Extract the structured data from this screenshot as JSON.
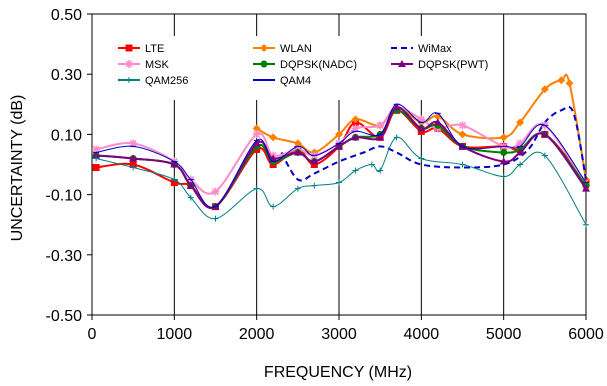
{
  "chart_data": {
    "type": "line",
    "xlabel": "FREQUENCY (MHz)",
    "ylabel": "UNCERTAINTY (dB)",
    "xlim": [
      0,
      6000
    ],
    "ylim": [
      -0.5,
      0.5
    ],
    "xticks": [
      "0",
      "1000",
      "2000",
      "3000",
      "4000",
      "5000",
      "6000"
    ],
    "yticks": [
      "-0.50",
      "-0.30",
      "-0.10",
      "0.10",
      "0.30",
      "0.50"
    ],
    "grid": "vertical",
    "legend": "top-left",
    "series": [
      {
        "name": "LTE",
        "color": "#ff0000",
        "marker": "square",
        "dash": "",
        "x": [
          50,
          500,
          1000,
          1200,
          1500,
          2000,
          2200,
          2500,
          2700,
          3000,
          3200,
          3500,
          3700,
          4000,
          4200,
          4500,
          5000,
          5200,
          5500,
          6000
        ],
        "y": [
          -0.01,
          0.0,
          -0.06,
          -0.07,
          -0.14,
          0.05,
          0.0,
          0.05,
          0.0,
          0.06,
          0.14,
          0.09,
          0.18,
          0.11,
          0.12,
          0.06,
          0.06,
          0.05,
          0.1,
          -0.06
        ]
      },
      {
        "name": "WLAN",
        "color": "#ff8000",
        "marker": "diamond",
        "dash": "",
        "x": [
          2000,
          2200,
          2500,
          2700,
          3000,
          3200,
          3500,
          3700,
          4000,
          4200,
          4500,
          5000,
          5200,
          5500,
          5700,
          5800,
          6000
        ],
        "y": [
          0.12,
          0.09,
          0.07,
          0.04,
          0.1,
          0.15,
          0.13,
          0.19,
          0.14,
          0.16,
          0.1,
          0.09,
          0.14,
          0.25,
          0.28,
          0.27,
          -0.05
        ]
      },
      {
        "name": "WiMax",
        "color": "#0000cc",
        "marker": "none",
        "dash": "6,4",
        "x": [
          2300,
          2500,
          2700,
          3000,
          3300,
          3500,
          3700,
          4000,
          4500,
          5000,
          5300,
          5500,
          5700,
          5850,
          6000
        ],
        "y": [
          0.04,
          -0.05,
          -0.03,
          0.01,
          0.04,
          0.06,
          0.04,
          0.0,
          -0.01,
          0.0,
          0.05,
          0.14,
          0.18,
          0.17,
          -0.05
        ]
      },
      {
        "name": "MSK",
        "color": "#ff8cc8",
        "marker": "star",
        "dash": "",
        "x": [
          50,
          500,
          1000,
          1200,
          1500,
          2000,
          2200,
          2500,
          2700,
          3000,
          3200,
          3500,
          3700,
          4000,
          4200,
          4500,
          5000,
          5200,
          5500,
          6000
        ],
        "y": [
          0.05,
          0.07,
          0.01,
          -0.05,
          -0.09,
          0.1,
          0.03,
          0.05,
          0.03,
          0.07,
          0.12,
          0.13,
          0.19,
          0.15,
          0.12,
          0.13,
          0.06,
          0.07,
          0.13,
          -0.07
        ]
      },
      {
        "name": "DQPSK(NADC)",
        "color": "#008000",
        "marker": "circle",
        "dash": "",
        "x": [
          50,
          500,
          1000,
          1200,
          1500,
          2000,
          2200,
          2500,
          2700,
          3000,
          3200,
          3500,
          3700,
          4000,
          4200,
          4500,
          5000,
          5200,
          5500,
          6000
        ],
        "y": [
          0.03,
          0.02,
          0.0,
          -0.07,
          -0.14,
          0.06,
          0.01,
          0.04,
          0.01,
          0.06,
          0.09,
          0.1,
          0.18,
          0.12,
          0.13,
          0.06,
          0.04,
          0.05,
          0.1,
          -0.07
        ]
      },
      {
        "name": "DQPSK(PWT)",
        "color": "#7f007f",
        "marker": "triangle",
        "dash": "",
        "x": [
          50,
          500,
          1000,
          1200,
          1500,
          2000,
          2200,
          2500,
          2700,
          3000,
          3200,
          3500,
          3700,
          4000,
          4200,
          4500,
          5000,
          5200,
          5500,
          6000
        ],
        "y": [
          0.03,
          0.02,
          0.0,
          -0.07,
          -0.14,
          0.07,
          0.02,
          0.04,
          0.01,
          0.06,
          0.09,
          0.09,
          0.19,
          0.12,
          0.14,
          0.06,
          0.01,
          0.04,
          0.1,
          -0.08
        ]
      },
      {
        "name": "QAM256",
        "color": "#008080",
        "marker": "plus",
        "dash": "",
        "x": [
          50,
          500,
          1000,
          1200,
          1500,
          2000,
          2200,
          2500,
          2700,
          3000,
          3200,
          3400,
          3500,
          3700,
          4000,
          4500,
          5000,
          5200,
          5500,
          6000
        ],
        "y": [
          0.02,
          -0.01,
          -0.05,
          -0.11,
          -0.18,
          -0.08,
          -0.14,
          -0.08,
          -0.07,
          -0.06,
          -0.02,
          0.0,
          -0.02,
          0.09,
          0.02,
          0.0,
          -0.04,
          0.0,
          0.03,
          -0.2
        ]
      },
      {
        "name": "QAM4",
        "color": "#0000cc",
        "marker": "dash",
        "dash": "",
        "x": [
          50,
          500,
          1000,
          1200,
          1500,
          2000,
          2200,
          2500,
          2700,
          3000,
          3200,
          3500,
          3700,
          4000,
          4200,
          4500,
          5000,
          5200,
          5500,
          6000
        ],
        "y": [
          0.04,
          0.06,
          0.01,
          -0.05,
          -0.14,
          0.08,
          0.01,
          0.06,
          0.03,
          0.07,
          0.11,
          0.1,
          0.2,
          0.14,
          0.17,
          0.06,
          0.06,
          0.06,
          0.13,
          -0.06
        ]
      }
    ]
  }
}
